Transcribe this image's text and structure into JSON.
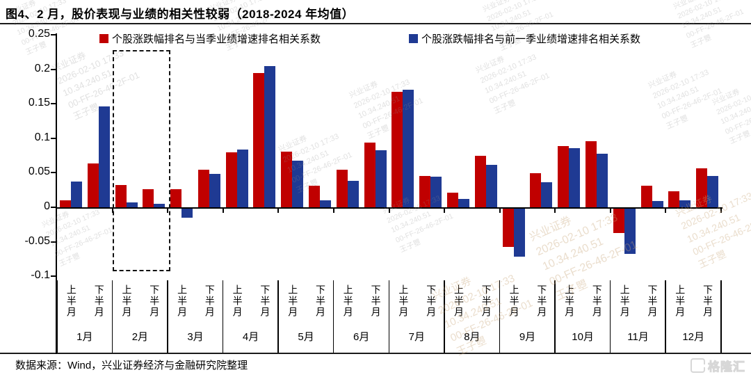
{
  "page": {
    "title": "图4、2 月，股价表现与业绩的相关性较弱（2018-2024 年均值）",
    "source_note": "数据来源：Wind，兴业证券经济与金融研究院整理",
    "logo_icon": "G",
    "logo_text": "格隆汇"
  },
  "watermark": {
    "lines": [
      "兴业证券",
      "2026-02-10 17:33",
      "10.34.240.51",
      "00-FF-26-46-2F-01",
      "王子瞾"
    ]
  },
  "chart_data": {
    "type": "bar",
    "title": "图4、2 月，股价表现与业绩的相关性较弱（2018-2024 年均值）",
    "categories": [
      "1月",
      "2月",
      "3月",
      "4月",
      "5月",
      "6月",
      "7月",
      "8月",
      "9月",
      "10月",
      "11月",
      "12月"
    ],
    "half_labels": [
      "上半月",
      "下半月"
    ],
    "highlighted_category": "2月",
    "ylim": [
      -0.1,
      0.25
    ],
    "yticks": [
      0.25,
      0.2,
      0.15,
      0.1,
      0.05,
      0,
      -0.05,
      -0.1
    ],
    "grid": false,
    "legend_position": "top-inside",
    "series": [
      {
        "name": "个股涨跌幅排名与当季业绩增速排名相关系数",
        "color": "#C00000",
        "values": [
          0.01,
          0.064,
          0.032,
          0.026,
          0.026,
          0.054,
          0.08,
          0.195,
          0.081,
          0.031,
          0.054,
          0.094,
          0.167,
          0.045,
          0.021,
          0.075,
          -0.055,
          0.049,
          0.089,
          0.096,
          -0.035,
          0.031,
          0.023,
          0.056
        ]
      },
      {
        "name": "个股涨跌幅排名与前一季业绩增速排名相关系数",
        "color": "#1F3A93",
        "values": [
          0.037,
          0.146,
          0.007,
          0.005,
          -0.013,
          0.048,
          0.084,
          0.205,
          0.068,
          0.01,
          0.038,
          0.083,
          0.17,
          0.044,
          0.012,
          0.062,
          -0.07,
          0.036,
          0.086,
          0.078,
          -0.065,
          0.009,
          0.01,
          0.045
        ]
      }
    ]
  }
}
